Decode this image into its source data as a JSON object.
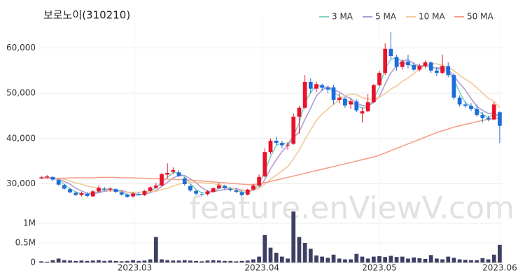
{
  "chart_data": {
    "type": "candlestick",
    "title": "보로노이(310210)",
    "watermark": "feature.enViewV.com",
    "up_color": "#e8132a",
    "down_color": "#1c6cdc",
    "volume_color": "#3d3f63",
    "xlim": [
      -0.5,
      80.5
    ],
    "xticks": [
      {
        "value": 16.3,
        "label": "2023.03"
      },
      {
        "value": 38.5,
        "label": "2023.04"
      },
      {
        "value": 59,
        "label": "2023.05"
      },
      {
        "value": 80,
        "label": "2023.06"
      }
    ],
    "ylim": [
      24500,
      67500
    ],
    "yticks": [
      {
        "value": 30000,
        "label": "30,000"
      },
      {
        "value": 40000,
        "label": "40,000"
      },
      {
        "value": 50000,
        "label": "50,000"
      },
      {
        "value": 60000,
        "label": "60,000"
      }
    ],
    "grid": true,
    "legend": "top-right",
    "open": [
      31200,
      31400,
      31500,
      30800,
      29700,
      28800,
      28000,
      27500,
      27800,
      27200,
      28300,
      28900,
      28700,
      28800,
      28100,
      27600,
      27200,
      27700,
      27500,
      28400,
      29100,
      29600,
      32000,
      32600,
      32500,
      31200,
      29500,
      28400,
      27700,
      27700,
      28200,
      29000,
      29500,
      28900,
      28500,
      28100,
      27600,
      28700,
      29600,
      31600,
      37000,
      39500,
      39000,
      38500,
      38800,
      44800,
      46800,
      52500,
      51000,
      51800,
      51200,
      51300,
      48500,
      48800,
      47500,
      48200,
      45500,
      46000,
      48000,
      51800,
      54500,
      59800,
      58000,
      55800,
      57000,
      56200,
      55200,
      56000,
      56800,
      55000,
      54500,
      56000,
      54000,
      49000,
      47500,
      47200,
      46500,
      45200,
      44500,
      44200,
      45800
    ],
    "high": [
      31700,
      31900,
      31600,
      31000,
      30000,
      29100,
      28300,
      28200,
      28100,
      28600,
      29600,
      29300,
      29200,
      29000,
      28400,
      27800,
      28100,
      28200,
      28600,
      29400,
      30200,
      32400,
      34500,
      33600,
      33000,
      31400,
      29900,
      28700,
      28200,
      28600,
      29200,
      30200,
      29800,
      29200,
      29000,
      28400,
      28900,
      30000,
      32000,
      37800,
      40000,
      40400,
      39500,
      39200,
      45500,
      47200,
      54000,
      53300,
      52600,
      52100,
      51500,
      51800,
      50000,
      49200,
      48800,
      48600,
      46800,
      49800,
      52000,
      55000,
      61000,
      63500,
      58500,
      57500,
      58500,
      56800,
      56500,
      57200,
      57000,
      55800,
      58500,
      56800,
      54500,
      49500,
      48200,
      47800,
      47500,
      45800,
      45000,
      48000,
      46000
    ],
    "low": [
      31000,
      31200,
      30600,
      29600,
      28700,
      27900,
      27300,
      27200,
      27000,
      27100,
      28000,
      28400,
      28200,
      27900,
      27400,
      26900,
      26900,
      27400,
      27300,
      28200,
      28900,
      29400,
      31200,
      32100,
      31500,
      29600,
      28200,
      27500,
      27200,
      27400,
      28000,
      28800,
      28700,
      28300,
      27900,
      27200,
      27400,
      28500,
      29300,
      31400,
      36500,
      38500,
      37800,
      37500,
      38600,
      41000,
      46500,
      50000,
      50200,
      50500,
      50000,
      47500,
      47800,
      46800,
      46500,
      45800,
      43500,
      45800,
      47800,
      51500,
      54000,
      57500,
      55000,
      55200,
      55500,
      54800,
      54800,
      55500,
      54500,
      53800,
      54200,
      53500,
      48500,
      47000,
      46800,
      46000,
      44800,
      43500,
      43800,
      44000,
      39000
    ],
    "close": [
      31400,
      31600,
      30900,
      29800,
      28900,
      28100,
      27500,
      27900,
      27300,
      28300,
      29100,
      28700,
      28900,
      28200,
      27600,
      27100,
      27800,
      27500,
      28400,
      29200,
      29600,
      32100,
      32400,
      33000,
      31700,
      29900,
      28500,
      27800,
      27600,
      28300,
      29000,
      29600,
      29000,
      28600,
      28200,
      27500,
      28700,
      29600,
      31500,
      37000,
      39500,
      39000,
      38500,
      38600,
      44800,
      46800,
      52500,
      51000,
      52000,
      51200,
      50800,
      48500,
      49000,
      47300,
      48200,
      46200,
      46000,
      48000,
      51800,
      54500,
      59800,
      58200,
      55800,
      57000,
      56200,
      55200,
      56000,
      56800,
      55000,
      54500,
      56000,
      54000,
      49000,
      47500,
      47200,
      46500,
      45200,
      44500,
      44200,
      47500,
      42800
    ],
    "series": [
      {
        "name": "3 MA",
        "color": "#7fd3c4",
        "values": [
          31300,
          31400,
          31300,
          30800,
          29900,
          28900,
          28200,
          27800,
          27600,
          27800,
          28200,
          28700,
          28900,
          28600,
          28200,
          27600,
          27500,
          27500,
          27900,
          28400,
          29100,
          30300,
          31400,
          32500,
          32400,
          31500,
          30000,
          28700,
          28000,
          27900,
          28300,
          29000,
          29200,
          29100,
          28600,
          28100,
          28100,
          28600,
          29900,
          32700,
          36000,
          38500,
          39000,
          38700,
          40600,
          43400,
          48000,
          50100,
          51800,
          51400,
          51300,
          50200,
          49400,
          48300,
          48200,
          47200,
          46800,
          46700,
          48600,
          51400,
          55400,
          57500,
          57900,
          57000,
          56300,
          56100,
          55800,
          56000,
          55900,
          55400,
          55200,
          54800,
          53000,
          50200,
          47900,
          47100,
          46300,
          45400,
          44600,
          45400,
          44800
        ]
      },
      {
        "name": "5 MA",
        "color": "#b39bd0",
        "values": [
          31300,
          31400,
          31300,
          31000,
          30500,
          29900,
          29000,
          28400,
          27900,
          27800,
          28000,
          28300,
          28500,
          28600,
          28500,
          28100,
          27900,
          27600,
          27700,
          28000,
          28500,
          29400,
          30300,
          31300,
          31800,
          31800,
          31100,
          30200,
          29100,
          28400,
          28200,
          28500,
          28700,
          28900,
          28900,
          28600,
          28400,
          28500,
          29100,
          30900,
          33300,
          35300,
          37100,
          38500,
          40100,
          41500,
          44200,
          46700,
          49400,
          50700,
          51500,
          50700,
          50300,
          49400,
          48800,
          47800,
          47300,
          47100,
          48000,
          49300,
          52000,
          54500,
          56000,
          57100,
          57400,
          56500,
          56000,
          56200,
          55800,
          55500,
          55700,
          55300,
          53700,
          52200,
          50700,
          48800,
          47100,
          46200,
          45500,
          45600,
          44800
        ]
      },
      {
        "name": "10 MA",
        "color": "#f2c99a",
        "values": [
          31200,
          31200,
          31200,
          31100,
          31000,
          30600,
          30200,
          29900,
          29500,
          29200,
          29000,
          28700,
          28500,
          28300,
          28200,
          28100,
          28100,
          28100,
          28200,
          28300,
          28300,
          28700,
          29000,
          29500,
          29900,
          30200,
          30300,
          30300,
          30200,
          30100,
          30000,
          29800,
          29500,
          29000,
          28700,
          28400,
          28500,
          28600,
          29000,
          29900,
          31000,
          31900,
          32800,
          33800,
          35500,
          37400,
          39800,
          41900,
          44000,
          45400,
          46500,
          47500,
          48500,
          49400,
          49800,
          49700,
          49000,
          48700,
          48700,
          49100,
          49900,
          50900,
          51600,
          52600,
          53400,
          54300,
          55300,
          56100,
          56500,
          56500,
          56100,
          55700,
          55000,
          54000,
          53100,
          52300,
          51200,
          50000,
          48900,
          48200,
          46800
        ]
      },
      {
        "name": "50 MA",
        "color": "#f4a08a",
        "values": [
          31200,
          31200,
          31200,
          31200,
          31200,
          31300,
          31300,
          31300,
          31300,
          31300,
          31400,
          31400,
          31400,
          31400,
          31300,
          31300,
          31300,
          31200,
          31200,
          31100,
          31100,
          31100,
          31000,
          31000,
          30900,
          30900,
          30800,
          30700,
          30600,
          30500,
          30400,
          30300,
          30200,
          30100,
          30000,
          29900,
          29800,
          29800,
          30000,
          30200,
          30500,
          30800,
          31100,
          31400,
          31700,
          32000,
          32300,
          32600,
          32900,
          33200,
          33500,
          33800,
          34100,
          34400,
          34700,
          35000,
          35300,
          35600,
          35900,
          36300,
          36800,
          37300,
          37800,
          38300,
          38800,
          39300,
          39800,
          40300,
          40800,
          41300,
          41700,
          42100,
          42500,
          42800,
          43100,
          43400,
          43700,
          44000,
          44200,
          44400,
          44500
        ]
      }
    ],
    "volume": {
      "ylim": [
        0,
        1250000
      ],
      "yticks": [
        0,
        {
          "value": 500000,
          "label": "0.5M"
        },
        {
          "value": 1000000,
          "label": "1M"
        }
      ],
      "values": [
        30000,
        20000,
        60000,
        100000,
        60000,
        50000,
        40000,
        50000,
        40000,
        50000,
        60000,
        40000,
        50000,
        40000,
        30000,
        40000,
        60000,
        40000,
        50000,
        80000,
        650000,
        80000,
        60000,
        50000,
        50000,
        60000,
        50000,
        40000,
        30000,
        50000,
        60000,
        50000,
        40000,
        40000,
        30000,
        40000,
        50000,
        80000,
        150000,
        700000,
        380000,
        250000,
        150000,
        100000,
        1300000,
        650000,
        500000,
        350000,
        180000,
        150000,
        120000,
        200000,
        100000,
        80000,
        80000,
        220000,
        150000,
        100000,
        150000,
        160000,
        140000,
        170000,
        140000,
        150000,
        100000,
        130000,
        110000,
        90000,
        190000,
        100000,
        80000,
        150000,
        120000,
        80000,
        70000,
        60000,
        60000,
        110000,
        80000,
        200000,
        450000
      ]
    }
  }
}
